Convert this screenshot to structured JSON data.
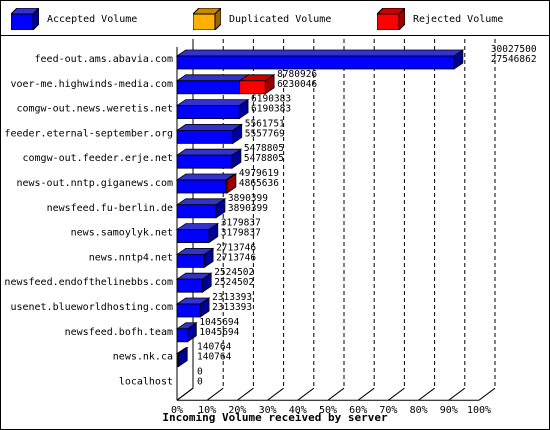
{
  "chart_data": {
    "type": "bar",
    "orientation": "horizontal",
    "stacking": "overlaid-3d",
    "xlabel": "Incoming Volume received by server",
    "ylabel": "",
    "xlim": [
      0,
      100
    ],
    "x_ticks": [
      "0%",
      "10%",
      "20%",
      "30%",
      "40%",
      "50%",
      "60%",
      "70%",
      "80%",
      "90%",
      "100%"
    ],
    "grid": "vertical-dashed",
    "legend_position": "top",
    "categories": [
      "feed-out.ams.abavia.com",
      "voer-me.highwinds-media.com",
      "comgw-out.news.weretis.net",
      "feeder.eternal-september.org",
      "comgw-out.feeder.erje.net",
      "news-out.nntp.giganews.com",
      "newsfeed.fu-berlin.de",
      "news.samoylyk.net",
      "news.nntp4.net",
      "newsfeed.endofthelinebbs.com",
      "usenet.blueworldhosting.com",
      "newsfeed.bofh.team",
      "news.nk.ca",
      "localhost"
    ],
    "totals": [
      30027500,
      8780926,
      6190383,
      5561751,
      5478805,
      4979619,
      3890399,
      3179837,
      2713746,
      2524502,
      2313393,
      1045694,
      140764,
      0
    ],
    "accepted": [
      27546862,
      6230046,
      6190383,
      5557769,
      5478805,
      4865636,
      3890399,
      3179837,
      2713746,
      2524502,
      2313393,
      1045694,
      140764,
      0
    ],
    "series": [
      {
        "name": "Accepted Volume",
        "color": "#0000ff",
        "top_color": "#3333cc",
        "side_color": "#000099"
      },
      {
        "name": "Duplicated Volume",
        "color": "#ffb000",
        "top_color": "#cc8800",
        "side_color": "#996600"
      },
      {
        "name": "Rejected Volume",
        "color": "#ff0000",
        "top_color": "#cc0000",
        "side_color": "#990000"
      }
    ],
    "bar_series": [
      "Accepted Volume",
      "Rejected Volume",
      "Accepted Volume",
      "Duplicated Volume",
      "Accepted Volume",
      "Rejected Volume",
      "Accepted Volume",
      "Accepted Volume",
      "Accepted Volume",
      "Accepted Volume",
      "Accepted Volume",
      "Accepted Volume",
      "Accepted Volume",
      "Accepted Volume"
    ]
  }
}
